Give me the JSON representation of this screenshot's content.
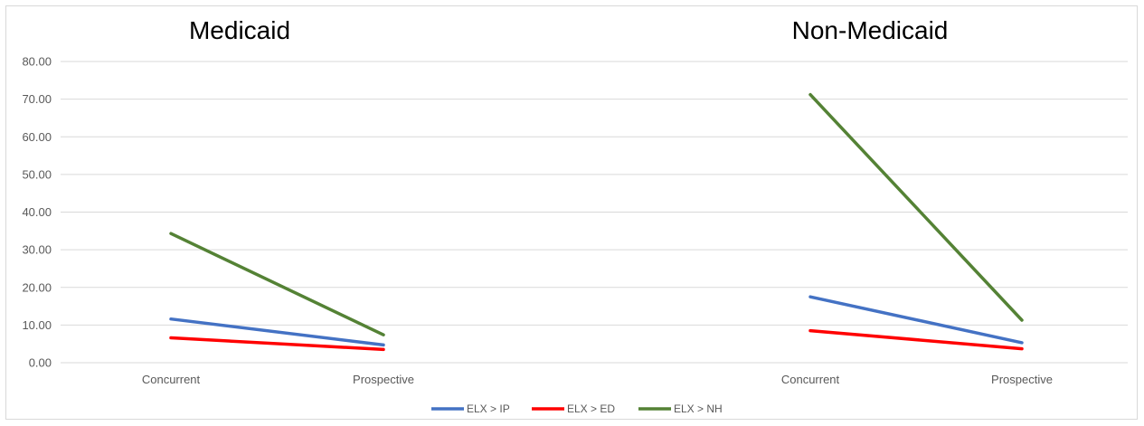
{
  "chart_data": {
    "type": "line",
    "panels": [
      {
        "title": "Medicaid",
        "categories": [
          "Concurrent",
          "Prospective"
        ],
        "series": [
          {
            "name": "ELX > IP",
            "values": [
              11.6,
              4.7
            ]
          },
          {
            "name": "ELX > ED",
            "values": [
              6.6,
              3.5
            ]
          },
          {
            "name": "ELX > NH",
            "values": [
              34.3,
              7.4
            ]
          }
        ]
      },
      {
        "title": "Non-Medicaid",
        "categories": [
          "Concurrent",
          "Prospective"
        ],
        "series": [
          {
            "name": "ELX > IP",
            "values": [
              17.5,
              5.3
            ]
          },
          {
            "name": "ELX > ED",
            "values": [
              8.5,
              3.7
            ]
          },
          {
            "name": "ELX > NH",
            "values": [
              71.2,
              11.3
            ]
          }
        ]
      }
    ],
    "ylim": [
      0,
      80
    ],
    "yticks": [
      "0.00",
      "10.00",
      "20.00",
      "30.00",
      "40.00",
      "50.00",
      "60.00",
      "70.00",
      "80.00"
    ],
    "grid": true,
    "legend": "bottom",
    "colors": {
      "ELX > IP": "#4472c4",
      "ELX > ED": "#ff0000",
      "ELX > NH": "#548235"
    }
  }
}
